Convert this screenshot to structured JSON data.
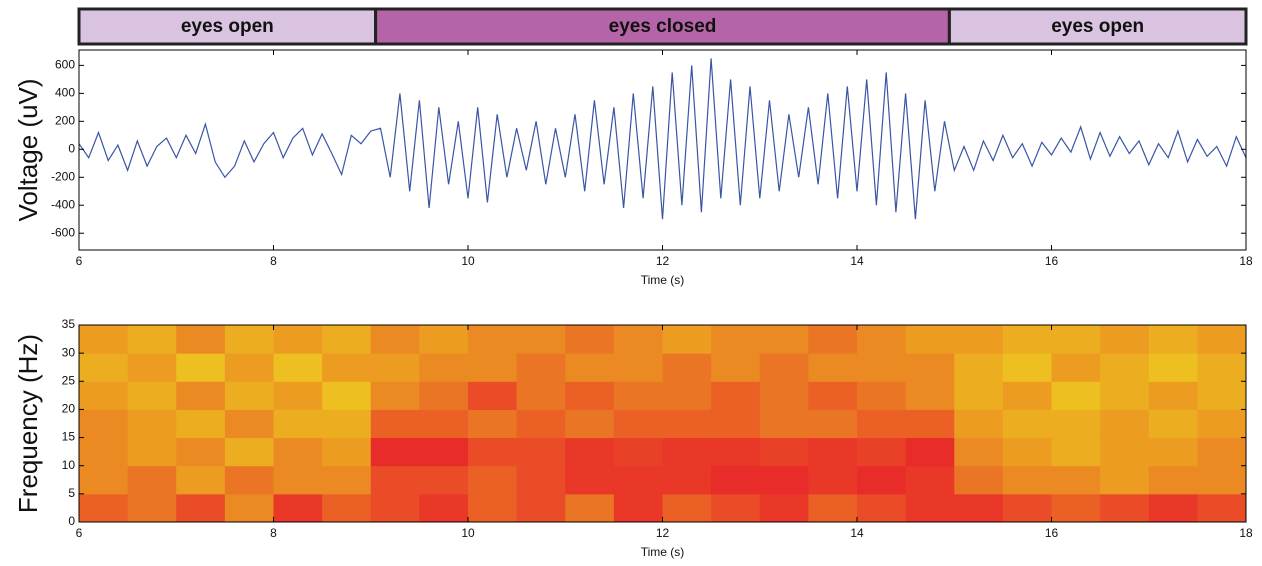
{
  "chart_data": [
    {
      "type": "line",
      "annotations": [
        {
          "text": "eyes open",
          "x": [
            6,
            9.05
          ],
          "color": "#d9c3e0"
        },
        {
          "text": "eyes closed",
          "x": [
            9.05,
            14.95
          ],
          "color": "#b565a7"
        },
        {
          "text": "eyes open",
          "x": [
            14.95,
            18
          ],
          "color": "#d9c3e0"
        }
      ],
      "x_label": "Time (s)",
      "y_label": "Voltage (uV)",
      "xlim": [
        6,
        18
      ],
      "xticks": [
        6,
        8,
        10,
        12,
        14,
        16,
        18
      ],
      "ylim": [
        -720,
        710
      ],
      "yticks": [
        -600,
        -400,
        -200,
        0,
        200,
        400,
        600
      ],
      "x": [
        6,
        6.1,
        6.2,
        6.3,
        6.4,
        6.5,
        6.6,
        6.7,
        6.8,
        6.9,
        7,
        7.1,
        7.2,
        7.3,
        7.4,
        7.5,
        7.6,
        7.7,
        7.8,
        7.9,
        8,
        8.1,
        8.2,
        8.3,
        8.4,
        8.5,
        8.6,
        8.7,
        8.8,
        8.9,
        9,
        9.1,
        9.2,
        9.3,
        9.4,
        9.5,
        9.6,
        9.7,
        9.8,
        9.9,
        10,
        10.1,
        10.2,
        10.3,
        10.4,
        10.5,
        10.6,
        10.7,
        10.8,
        10.9,
        11,
        11.1,
        11.2,
        11.3,
        11.4,
        11.5,
        11.6,
        11.7,
        11.8,
        11.9,
        12,
        12.1,
        12.2,
        12.3,
        12.4,
        12.5,
        12.6,
        12.7,
        12.8,
        12.9,
        13,
        13.1,
        13.2,
        13.3,
        13.4,
        13.5,
        13.6,
        13.7,
        13.8,
        13.9,
        14,
        14.1,
        14.2,
        14.3,
        14.4,
        14.5,
        14.6,
        14.7,
        14.8,
        14.9,
        15,
        15.1,
        15.2,
        15.3,
        15.4,
        15.5,
        15.6,
        15.7,
        15.8,
        15.9,
        16,
        16.1,
        16.2,
        16.3,
        16.4,
        16.5,
        16.6,
        16.7,
        16.8,
        16.9,
        17,
        17.1,
        17.2,
        17.3,
        17.4,
        17.5,
        17.6,
        17.7,
        17.8,
        17.9,
        18
      ],
      "series": [
        {
          "color": "#3a55a5",
          "values": [
            40,
            -60,
            120,
            -80,
            30,
            -150,
            60,
            -120,
            20,
            80,
            -60,
            100,
            -30,
            180,
            -90,
            -200,
            -120,
            60,
            -90,
            40,
            120,
            -60,
            80,
            150,
            -40,
            110,
            -30,
            -180,
            100,
            40,
            130,
            150,
            -200,
            400,
            -300,
            350,
            -420,
            300,
            -250,
            200,
            -350,
            300,
            -380,
            250,
            -200,
            150,
            -150,
            200,
            -250,
            150,
            -200,
            250,
            -300,
            350,
            -250,
            300,
            -420,
            400,
            -350,
            450,
            -500,
            550,
            -400,
            600,
            -450,
            650,
            -350,
            500,
            -400,
            450,
            -350,
            350,
            -300,
            250,
            -200,
            300,
            -250,
            400,
            -350,
            450,
            -300,
            500,
            -400,
            550,
            -450,
            400,
            -500,
            350,
            -300,
            200,
            -150,
            20,
            -150,
            60,
            -80,
            100,
            -60,
            40,
            -120,
            50,
            -40,
            80,
            -20,
            160,
            -70,
            120,
            -50,
            90,
            -30,
            60,
            -110,
            40,
            -60,
            130,
            -90,
            70,
            -50,
            20,
            -120,
            90,
            -60
          ]
        }
      ]
    },
    {
      "type": "heatmap",
      "x_label": "Time (s)",
      "y_label": "Frequency (Hz)",
      "xlim": [
        6,
        18
      ],
      "xticks": [
        6,
        8,
        10,
        12,
        14,
        16,
        18
      ],
      "ylim": [
        0,
        35
      ],
      "yticks": [
        0,
        5,
        10,
        15,
        20,
        25,
        30,
        35
      ],
      "x": [
        6,
        6.5,
        7,
        7.5,
        8,
        8.5,
        9,
        9.5,
        10,
        10.5,
        11,
        11.5,
        12,
        12.5,
        13,
        13.5,
        14,
        14.5,
        15,
        15.5,
        16,
        16.5,
        17,
        17.5,
        18
      ],
      "y": [
        0,
        5,
        10,
        15,
        20,
        25,
        30,
        35
      ],
      "zlim": [
        0,
        1
      ],
      "colorscale": [
        "#eee21e",
        "#eb8a22",
        "#e8222a"
      ],
      "values": [
        [
          0.7,
          0.6,
          0.8,
          0.5,
          0.9,
          0.7,
          0.8,
          0.9,
          0.7,
          0.8,
          0.6,
          0.9,
          0.7,
          0.8,
          0.9,
          0.7,
          0.8,
          0.9,
          0.9,
          0.8,
          0.7,
          0.8,
          0.9,
          0.8
        ],
        [
          0.5,
          0.6,
          0.4,
          0.6,
          0.5,
          0.5,
          0.8,
          0.8,
          0.7,
          0.8,
          0.9,
          0.9,
          0.9,
          0.95,
          0.95,
          0.9,
          0.95,
          0.9,
          0.6,
          0.5,
          0.5,
          0.4,
          0.5,
          0.5
        ],
        [
          0.5,
          0.4,
          0.5,
          0.3,
          0.5,
          0.4,
          0.95,
          0.95,
          0.8,
          0.8,
          0.9,
          0.85,
          0.9,
          0.9,
          0.85,
          0.9,
          0.85,
          0.95,
          0.5,
          0.4,
          0.3,
          0.4,
          0.4,
          0.5
        ],
        [
          0.5,
          0.4,
          0.3,
          0.5,
          0.3,
          0.3,
          0.7,
          0.7,
          0.6,
          0.7,
          0.6,
          0.7,
          0.7,
          0.7,
          0.6,
          0.6,
          0.7,
          0.7,
          0.4,
          0.3,
          0.3,
          0.4,
          0.3,
          0.4
        ],
        [
          0.4,
          0.3,
          0.5,
          0.3,
          0.4,
          0.2,
          0.5,
          0.6,
          0.8,
          0.6,
          0.7,
          0.6,
          0.6,
          0.7,
          0.6,
          0.7,
          0.6,
          0.5,
          0.3,
          0.4,
          0.2,
          0.3,
          0.4,
          0.3
        ],
        [
          0.3,
          0.4,
          0.2,
          0.4,
          0.2,
          0.4,
          0.4,
          0.5,
          0.5,
          0.6,
          0.5,
          0.5,
          0.6,
          0.5,
          0.6,
          0.5,
          0.5,
          0.5,
          0.3,
          0.2,
          0.4,
          0.3,
          0.2,
          0.3
        ],
        [
          0.4,
          0.3,
          0.5,
          0.3,
          0.4,
          0.3,
          0.5,
          0.4,
          0.5,
          0.5,
          0.6,
          0.5,
          0.4,
          0.5,
          0.5,
          0.6,
          0.5,
          0.4,
          0.4,
          0.3,
          0.3,
          0.4,
          0.3,
          0.4
        ]
      ]
    }
  ]
}
